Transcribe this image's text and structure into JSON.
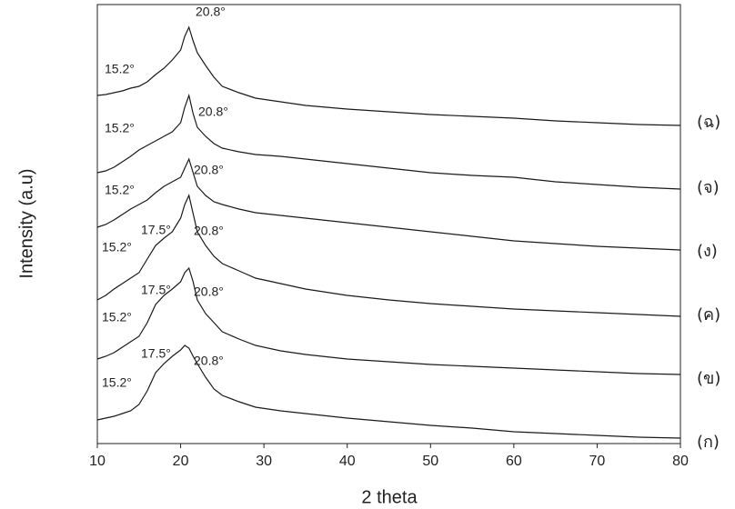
{
  "chart_data": {
    "type": "line",
    "xlabel": "2 theta",
    "ylabel": "Intensity (a.u)",
    "xlim": [
      10,
      80
    ],
    "xticks": [
      10,
      20,
      30,
      40,
      50,
      60,
      70,
      80
    ],
    "ylim": [
      0,
      483
    ],
    "x": [
      10,
      11,
      12,
      13,
      14,
      15,
      16,
      17,
      18,
      19,
      20,
      20.5,
      21,
      21.5,
      22,
      23,
      24,
      25,
      27,
      29,
      32,
      35,
      40,
      45,
      50,
      55,
      60,
      65,
      70,
      75,
      80
    ],
    "series": [
      {
        "name": "(ฉ)",
        "color": "#1a1a1a",
        "peaks": [
          "15.2°",
          "20.8°"
        ],
        "values": [
          383,
          384,
          386,
          388,
          391,
          393,
          398,
          406,
          413,
          422,
          433,
          448,
          458,
          443,
          430,
          416,
          403,
          393,
          386,
          380,
          376,
          372,
          368,
          365,
          362,
          360,
          358,
          355,
          353,
          351,
          350
        ]
      },
      {
        "name": "(จ)",
        "color": "#1a1a1a",
        "peaks": [
          "15.2°",
          "20.8°"
        ],
        "values": [
          298,
          300,
          304,
          310,
          316,
          323,
          328,
          333,
          338,
          343,
          353,
          370,
          383,
          363,
          348,
          338,
          330,
          325,
          321,
          318,
          316,
          313,
          308,
          303,
          298,
          295,
          293,
          288,
          285,
          282,
          280
        ]
      },
      {
        "name": "(ง)",
        "color": "#1a1a1a",
        "peaks": [
          "15.2°",
          "20.8°"
        ],
        "values": [
          238,
          241,
          246,
          252,
          258,
          263,
          268,
          276,
          283,
          288,
          293,
          303,
          313,
          298,
          283,
          273,
          266,
          263,
          258,
          254,
          251,
          248,
          243,
          238,
          233,
          228,
          223,
          220,
          217,
          215,
          213
        ]
      },
      {
        "name": "(ค)",
        "color": "#1a1a1a",
        "peaks": [
          "15.2°",
          "17.5°",
          "20.8°"
        ],
        "values": [
          158,
          163,
          170,
          176,
          182,
          188,
          203,
          218,
          226,
          233,
          248,
          263,
          273,
          253,
          233,
          218,
          206,
          198,
          190,
          182,
          176,
          170,
          163,
          158,
          154,
          151,
          148,
          146,
          144,
          142,
          140
        ]
      },
      {
        "name": "(ข)",
        "color": "#1a1a1a",
        "peaks": [
          "15.2°",
          "17.5°",
          "20.8°"
        ],
        "values": [
          93,
          96,
          100,
          106,
          112,
          118,
          133,
          153,
          163,
          170,
          178,
          188,
          193,
          178,
          158,
          143,
          133,
          123,
          115,
          108,
          102,
          98,
          93,
          90,
          87,
          85,
          83,
          81,
          79,
          77,
          76
        ]
      },
      {
        "name": "(ก)",
        "color": "#1a1a1a",
        "peaks": [
          "15.2°",
          "17.5°",
          "20.8°"
        ],
        "values": [
          26,
          28,
          30,
          33,
          36,
          43,
          58,
          78,
          88,
          96,
          103,
          108,
          105,
          96,
          88,
          73,
          60,
          53,
          46,
          40,
          36,
          33,
          28,
          24,
          20,
          17,
          13,
          11,
          9,
          7,
          6
        ]
      }
    ]
  }
}
